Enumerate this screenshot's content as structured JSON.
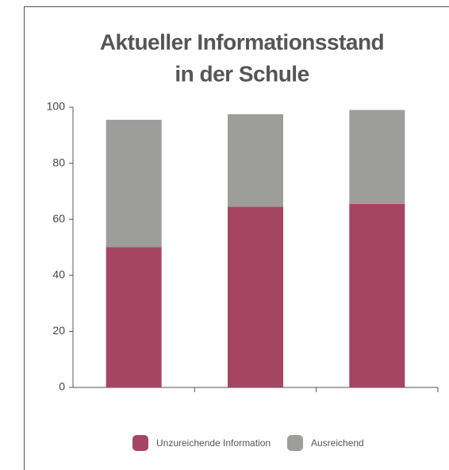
{
  "chart_data": {
    "type": "stacked_bar",
    "title": [
      "Aktueller Informationsstand",
      "in der Schule"
    ],
    "categories": [
      null,
      null,
      null
    ],
    "series": [
      {
        "name": "Unzureichende Information",
        "color": "#a64463",
        "values": [
          50,
          64.5,
          65.5
        ]
      },
      {
        "name": "Ausreichend",
        "color": "#9d9d9b",
        "values": [
          45.5,
          33,
          33.5
        ]
      }
    ],
    "ylim": [
      0,
      100
    ],
    "yticks": [
      0,
      20,
      40,
      60,
      80,
      100
    ],
    "grid": false,
    "legend": "bottom"
  }
}
